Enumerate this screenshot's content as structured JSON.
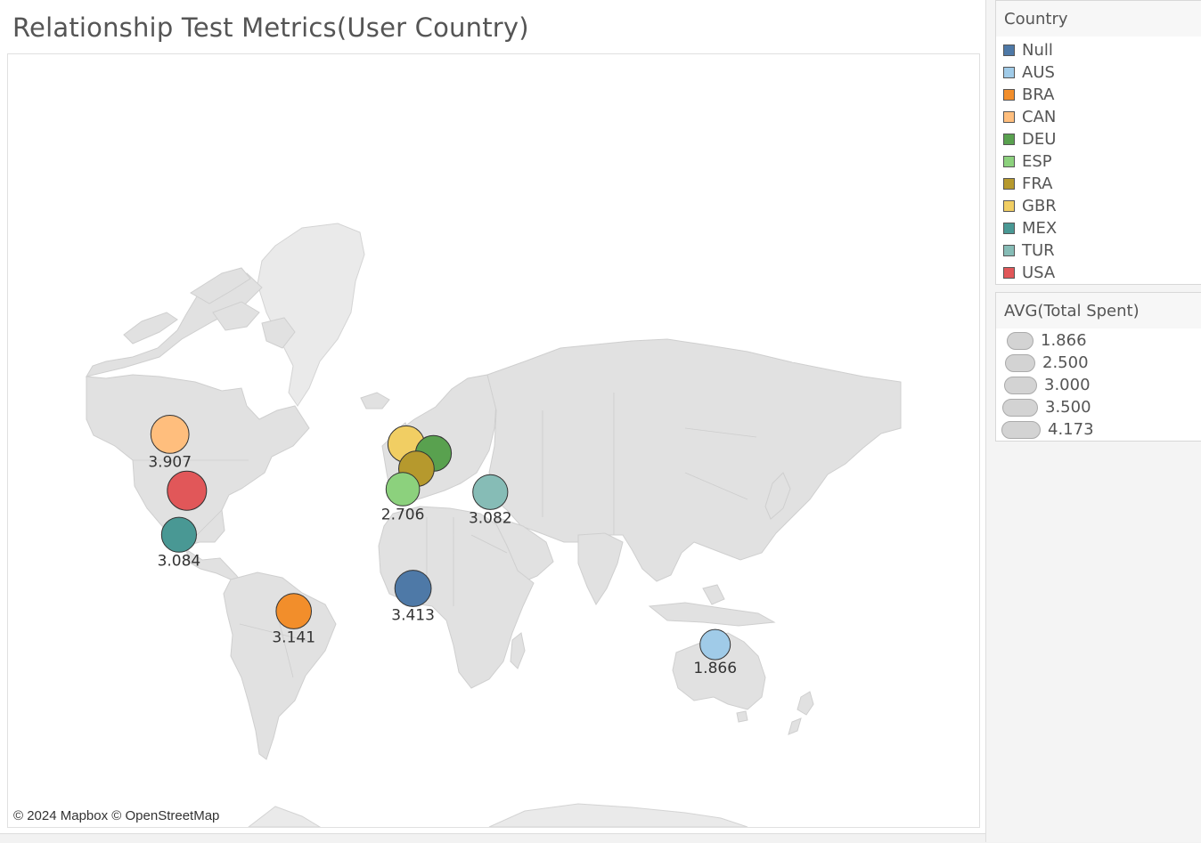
{
  "title": "Relationship Test Metrics(User Country)",
  "attribution": "© 2024 Mapbox © OpenStreetMap",
  "color_legend": {
    "title": "Country",
    "items": [
      {
        "label": "Null",
        "color": "#4e79a7"
      },
      {
        "label": "AUS",
        "color": "#a0cbe8"
      },
      {
        "label": "BRA",
        "color": "#f28e2b"
      },
      {
        "label": "CAN",
        "color": "#ffbe7d"
      },
      {
        "label": "DEU",
        "color": "#59a14f"
      },
      {
        "label": "ESP",
        "color": "#8cd17d"
      },
      {
        "label": "FRA",
        "color": "#b6992d"
      },
      {
        "label": "GBR",
        "color": "#f1ce63"
      },
      {
        "label": "MEX",
        "color": "#499894"
      },
      {
        "label": "TUR",
        "color": "#86bcb6"
      },
      {
        "label": "USA",
        "color": "#e15759"
      }
    ]
  },
  "size_legend": {
    "title": "AVG(Total Spent)",
    "items": [
      "1.866",
      "2.500",
      "3.000",
      "3.500",
      "4.173"
    ]
  },
  "chart_data": {
    "type": "scatter",
    "map": "world",
    "measure": "AVG(Total Spent)",
    "points": [
      {
        "country": "CAN",
        "lon": -106.0,
        "lat": 56.0,
        "value": 3.907,
        "label": "3.907"
      },
      {
        "country": "USA",
        "lon": -98.5,
        "lat": 39.5,
        "value": 4.173,
        "label": ""
      },
      {
        "country": "MEX",
        "lon": -102.0,
        "lat": 23.0,
        "value": 3.084,
        "label": "3.084"
      },
      {
        "country": "BRA",
        "lon": -51.5,
        "lat": -10.0,
        "value": 3.141,
        "label": "3.141"
      },
      {
        "country": "GBR",
        "lon": -2.0,
        "lat": 53.5,
        "value": 3.5,
        "label": ""
      },
      {
        "country": "DEU",
        "lon": 10.0,
        "lat": 51.0,
        "value": 3.3,
        "label": ""
      },
      {
        "country": "FRA",
        "lon": 2.5,
        "lat": 46.5,
        "value": 3.2,
        "label": ""
      },
      {
        "country": "ESP",
        "lon": -3.5,
        "lat": 40.0,
        "value": 2.706,
        "label": "2.706"
      },
      {
        "country": "TUR",
        "lon": 35.0,
        "lat": 39.0,
        "value": 3.082,
        "label": "3.082"
      },
      {
        "country": "Null",
        "lon": 1.0,
        "lat": 0.0,
        "value": 3.413,
        "label": "3.413"
      },
      {
        "country": "AUS",
        "lon": 134.0,
        "lat": -24.0,
        "value": 1.866,
        "label": "1.866"
      }
    ]
  }
}
